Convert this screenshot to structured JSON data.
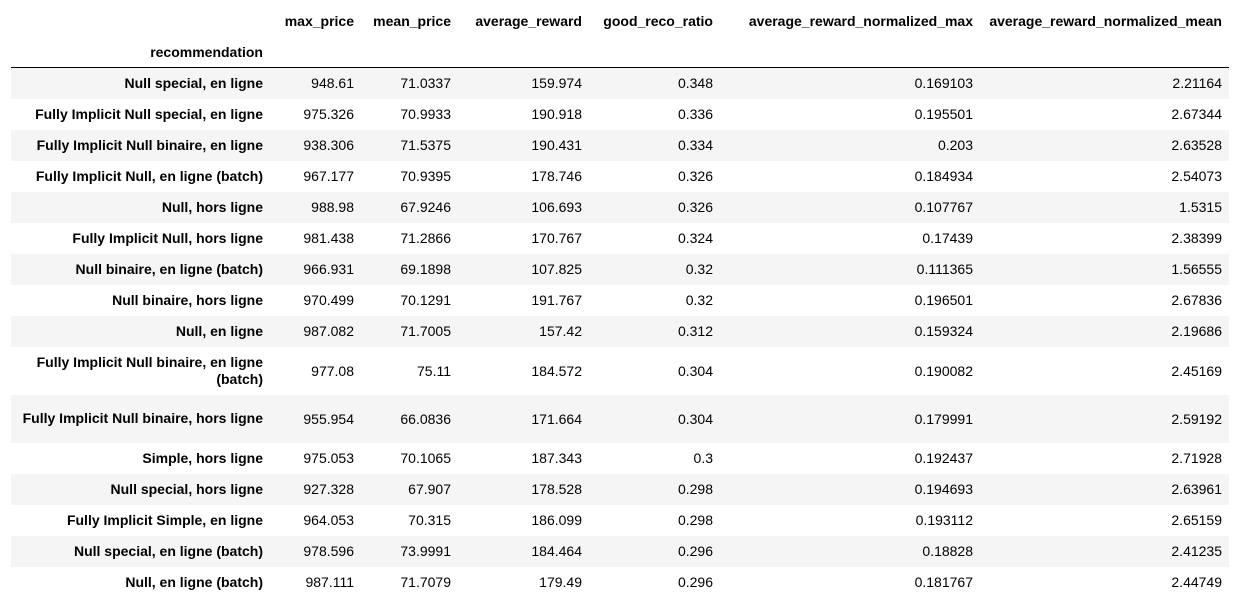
{
  "table": {
    "columns": [
      "max_price",
      "mean_price",
      "average_reward",
      "good_reco_ratio",
      "average_reward_normalized_max",
      "average_reward_normalized_mean"
    ],
    "index_name": "recommendation",
    "rows": [
      {
        "label": "Null special, en ligne",
        "values": [
          "948.61",
          "71.0337",
          "159.974",
          "0.348",
          "0.169103",
          "2.21164"
        ]
      },
      {
        "label": "Fully Implicit Null special, en ligne",
        "values": [
          "975.326",
          "70.9933",
          "190.918",
          "0.336",
          "0.195501",
          "2.67344"
        ]
      },
      {
        "label": "Fully Implicit Null binaire, en ligne",
        "values": [
          "938.306",
          "71.5375",
          "190.431",
          "0.334",
          "0.203",
          "2.63528"
        ]
      },
      {
        "label": "Fully Implicit Null, en ligne (batch)",
        "values": [
          "967.177",
          "70.9395",
          "178.746",
          "0.326",
          "0.184934",
          "2.54073"
        ]
      },
      {
        "label": "Null, hors ligne",
        "values": [
          "988.98",
          "67.9246",
          "106.693",
          "0.326",
          "0.107767",
          "1.5315"
        ]
      },
      {
        "label": "Fully Implicit Null, hors ligne",
        "values": [
          "981.438",
          "71.2866",
          "170.767",
          "0.324",
          "0.17439",
          "2.38399"
        ]
      },
      {
        "label": "Null binaire, en ligne (batch)",
        "values": [
          "966.931",
          "69.1898",
          "107.825",
          "0.32",
          "0.111365",
          "1.56555"
        ]
      },
      {
        "label": "Null binaire, hors ligne",
        "values": [
          "970.499",
          "70.1291",
          "191.767",
          "0.32",
          "0.196501",
          "2.67836"
        ]
      },
      {
        "label": "Null, en ligne",
        "values": [
          "987.082",
          "71.7005",
          "157.42",
          "0.312",
          "0.159324",
          "2.19686"
        ]
      },
      {
        "label": "Fully Implicit Null binaire, en ligne (batch)",
        "values": [
          "977.08",
          "75.11",
          "184.572",
          "0.304",
          "0.190082",
          "2.45169"
        ]
      },
      {
        "label": "Fully Implicit Null binaire, hors ligne",
        "values": [
          "955.954",
          "66.0836",
          "171.664",
          "0.304",
          "0.179991",
          "2.59192"
        ]
      },
      {
        "label": "Simple, hors ligne",
        "values": [
          "975.053",
          "70.1065",
          "187.343",
          "0.3",
          "0.192437",
          "2.71928"
        ]
      },
      {
        "label": "Null special, hors ligne",
        "values": [
          "927.328",
          "67.907",
          "178.528",
          "0.298",
          "0.194693",
          "2.63961"
        ]
      },
      {
        "label": "Fully Implicit Simple, en ligne",
        "values": [
          "964.053",
          "70.315",
          "186.099",
          "0.298",
          "0.193112",
          "2.65159"
        ]
      },
      {
        "label": "Null special, en ligne (batch)",
        "values": [
          "978.596",
          "73.9991",
          "184.464",
          "0.296",
          "0.18828",
          "2.41235"
        ]
      },
      {
        "label": "Null, en ligne (batch)",
        "values": [
          "987.111",
          "71.7079",
          "179.49",
          "0.296",
          "0.181767",
          "2.44749"
        ]
      }
    ]
  }
}
